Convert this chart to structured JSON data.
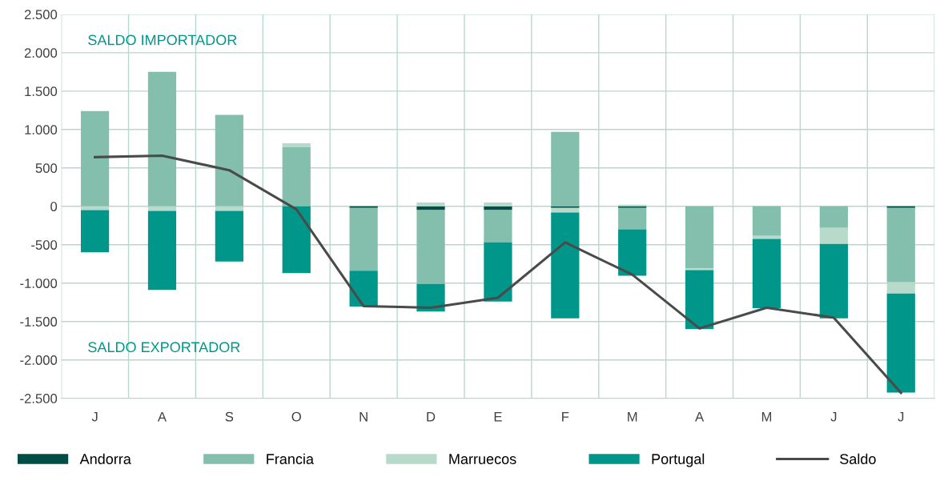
{
  "chart_data": {
    "type": "bar",
    "stacked": true,
    "categories": [
      "J",
      "A",
      "S",
      "O",
      "N",
      "D",
      "E",
      "F",
      "M",
      "A",
      "M",
      "J",
      "J"
    ],
    "series": [
      {
        "name": "Andorra",
        "color": "#004d45",
        "values": [
          null,
          null,
          null,
          null,
          -20,
          -50,
          -50,
          -20,
          -20,
          null,
          null,
          null,
          -20
        ]
      },
      {
        "name": "Francia",
        "color": "#84bfae",
        "values": [
          1240,
          1750,
          1190,
          770,
          -820,
          -960,
          -420,
          970,
          -280,
          -810,
          -385,
          -280,
          -970
        ]
      },
      {
        "name": "Marruecos",
        "color": "#b8dacb",
        "values": [
          -50,
          -60,
          -60,
          50,
          null,
          50,
          50,
          -60,
          20,
          -20,
          -40,
          -210,
          -145
        ]
      },
      {
        "name": "Portugal",
        "color": "#00968a",
        "values": [
          -550,
          -1030,
          -660,
          -870,
          -465,
          -360,
          -770,
          -1380,
          -605,
          -770,
          -900,
          -970,
          -1290
        ]
      },
      {
        "name": "Saldo",
        "type": "line",
        "color": "#4a4a4a",
        "values": [
          640,
          660,
          470,
          -40,
          -1300,
          -1320,
          -1190,
          -470,
          -890,
          -1590,
          -1320,
          -1450,
          -2430
        ]
      }
    ],
    "ylim": [
      -2500,
      2500
    ],
    "yticks": [
      {
        "value": -2500,
        "label": "-2.500"
      },
      {
        "value": -2000,
        "label": "-2.000"
      },
      {
        "value": -1500,
        "label": "-1.500"
      },
      {
        "value": -1000,
        "label": "-1.000"
      },
      {
        "value": -500,
        "label": "-500"
      },
      0,
      500,
      {
        "value": 1000,
        "label": "1.000"
      },
      {
        "value": 1500,
        "label": "1.500"
      },
      {
        "value": 2000,
        "label": "2.000"
      },
      {
        "value": 2500,
        "label": "2.500"
      }
    ],
    "grid": true,
    "legend": "bottom",
    "line_style": "solid",
    "marker": "none",
    "annotations": [
      "SALDO IMPORTADOR",
      "SALDO EXPORTADOR"
    ]
  }
}
